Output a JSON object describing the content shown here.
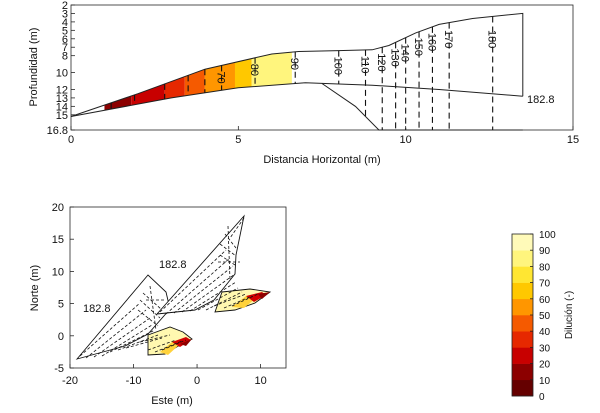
{
  "chart_data": [
    {
      "type": "contour",
      "title": "",
      "xlabel": "Distancia Horizontal (m)",
      "ylabel": "Profundidad (m)",
      "xlim": [
        0,
        15
      ],
      "ylim": [
        16.8,
        2
      ],
      "x_ticks": [
        0,
        5,
        10,
        15
      ],
      "y_ticks": [
        2,
        3,
        4,
        5,
        6,
        7,
        8,
        10,
        12,
        13,
        14,
        15,
        16.8
      ],
      "top_boundary": [
        [
          0,
          15.2
        ],
        [
          2,
          12.5
        ],
        [
          4,
          9.6
        ],
        [
          6,
          7.8
        ],
        [
          6.8,
          7.5
        ],
        [
          8,
          7.4
        ],
        [
          9,
          7.3
        ],
        [
          9.5,
          6.8
        ],
        [
          10.3,
          5.3
        ],
        [
          11,
          4.3
        ],
        [
          12,
          3.6
        ],
        [
          13.5,
          3.0
        ]
      ],
      "bottom_boundary": [
        [
          0,
          15.2
        ],
        [
          3.0,
          13.0
        ],
        [
          5.0,
          11.8
        ],
        [
          7.0,
          11.2
        ],
        [
          9.0,
          11.5
        ],
        [
          11.0,
          12.0
        ],
        [
          13.5,
          12.8
        ]
      ],
      "lower_branch": [
        [
          7.5,
          11.3
        ],
        [
          8.5,
          14.0
        ],
        [
          9.2,
          16.8
        ],
        [
          13.5,
          16.8
        ]
      ],
      "dilution_bands": [
        {
          "x0": 1.0,
          "x1": 1.8,
          "dilution": 15
        },
        {
          "x0": 1.8,
          "x1": 2.8,
          "dilution": 25
        },
        {
          "x0": 2.8,
          "x1": 3.4,
          "dilution": 35
        },
        {
          "x0": 3.4,
          "x1": 4.0,
          "dilution": 45
        },
        {
          "x0": 4.0,
          "x1": 4.9,
          "dilution": 55
        },
        {
          "x0": 4.9,
          "x1": 5.4,
          "dilution": 65
        },
        {
          "x0": 5.4,
          "x1": 6.6,
          "dilution": 85
        }
      ],
      "contour_lines": [
        {
          "x": 1.2,
          "label": ""
        },
        {
          "x": 1.9,
          "label": ""
        },
        {
          "x": 2.8,
          "label": ""
        },
        {
          "x": 3.5,
          "label": ""
        },
        {
          "x": 4.0,
          "label": ""
        },
        {
          "x": 4.5,
          "label": "70"
        },
        {
          "x": 5.5,
          "label": "80"
        },
        {
          "x": 6.7,
          "label": "90"
        },
        {
          "x": 8.0,
          "label": "100"
        },
        {
          "x": 8.8,
          "label": "110"
        },
        {
          "x": 9.3,
          "label": "120"
        },
        {
          "x": 9.7,
          "label": "130"
        },
        {
          "x": 10.0,
          "label": "140"
        },
        {
          "x": 10.4,
          "label": "150"
        },
        {
          "x": 10.8,
          "label": "160"
        },
        {
          "x": 11.3,
          "label": "170"
        },
        {
          "x": 12.6,
          "label": "180"
        }
      ],
      "end_label": "182.8"
    },
    {
      "type": "contour",
      "title": "",
      "xlabel": "Este (m)",
      "ylabel": "Norte (m)",
      "xlim": [
        -20,
        14
      ],
      "ylim": [
        -5,
        20
      ],
      "x_ticks": [
        -20,
        -10,
        0,
        10
      ],
      "y_ticks": [
        -5,
        0,
        5,
        10,
        15,
        20
      ],
      "contour_labels": [
        "182.8",
        "182.8"
      ]
    }
  ],
  "colorbar": {
    "label": "Dilución (-)",
    "ticks": [
      0,
      10,
      20,
      30,
      40,
      50,
      60,
      70,
      80,
      90,
      100
    ],
    "colors": [
      "#650000",
      "#8c0000",
      "#c80000",
      "#e62800",
      "#f55a00",
      "#ff9600",
      "#ffc800",
      "#ffe632",
      "#fff57d",
      "#fffab9"
    ]
  }
}
